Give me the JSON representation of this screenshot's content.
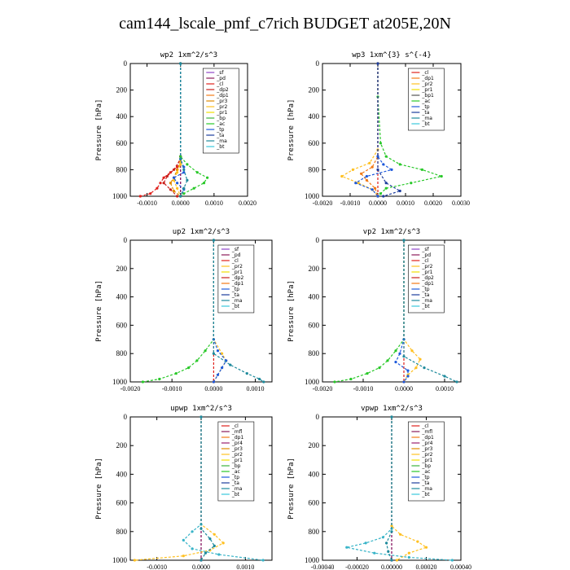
{
  "title": "cam144_lscale_pmf_c7rich  BUDGET at205E,20N",
  "colors": {
    "sf": "#8e44c8",
    "pd": "#8b1a5a",
    "cl": "#e0201c",
    "dp2": "#c8201c",
    "dp1": "#f27a16",
    "pr3": "#e08a00",
    "pr2": "#ffc020",
    "pr1": "#f0e000",
    "bp": "#3cb43c",
    "ac": "#28c828",
    "tp": "#1e5adc",
    "ta": "#1c3c9c",
    "ma": "#1e8a9c",
    "bt": "#38c8dc",
    "mfl": "#8b1a5a",
    "pr4": "#9a1e6e",
    "tp_t": "#38b4c8"
  },
  "chart_data": [
    {
      "type": "line",
      "title": "wp2   1xm^2/s^3",
      "ylabel": "Pressure  [hPa]",
      "ylim": [
        1000,
        0
      ],
      "yticks": [
        "0",
        "200",
        "400",
        "600",
        "800",
        "1000"
      ],
      "xlim": [
        -0.0015,
        0.002
      ],
      "xticks": [
        -0.001,
        0.0,
        0.001,
        0.002
      ],
      "xtick_labels": [
        "-0.0010",
        "0.0000",
        "0.0010",
        "0.0020"
      ],
      "legend": [
        "_sf",
        "_pd",
        "_cl",
        "_dp2",
        "_dp1",
        "_pr3",
        "_pr2",
        "_pr1",
        "_bp",
        "_ac",
        "_tp",
        "_ta",
        "_ma",
        "_bt"
      ],
      "series": [
        {
          "name": "_sf",
          "color": "#8e44c8",
          "y": [
            0,
            700,
            1000
          ],
          "x": [
            0,
            0,
            0
          ]
        },
        {
          "name": "_pd",
          "color": "#8b1a5a",
          "y": [
            0,
            700,
            1000
          ],
          "x": [
            0,
            0,
            0
          ]
        },
        {
          "name": "_cl",
          "color": "#e0201c",
          "y": [
            0,
            700,
            780,
            820,
            860,
            900,
            940,
            980,
            1000
          ],
          "x": [
            0,
            0,
            -0.0001,
            -0.0003,
            -0.0005,
            -0.0006,
            -0.0007,
            -0.0009,
            -0.0012
          ]
        },
        {
          "name": "_dp2",
          "color": "#c8201c",
          "y": [
            0,
            720,
            800,
            850,
            900,
            950,
            1000
          ],
          "x": [
            0,
            0,
            -0.0002,
            -0.0004,
            -0.0005,
            -0.0003,
            -0.0001
          ]
        },
        {
          "name": "_pr3",
          "color": "#e08a00",
          "y": [
            0,
            740,
            800,
            860,
            900,
            960,
            1000
          ],
          "x": [
            0,
            0,
            -0.0001,
            -0.0002,
            -0.0003,
            -0.0002,
            0
          ]
        },
        {
          "name": "_pr2",
          "color": "#ffc020",
          "y": [
            0,
            760,
            820,
            880,
            940,
            1000
          ],
          "x": [
            0,
            0,
            -0.0001,
            -0.0002,
            -0.0001,
            0
          ]
        },
        {
          "name": "_ac",
          "color": "#28c828",
          "y": [
            0,
            700,
            760,
            820,
            860,
            900,
            940,
            980,
            1000
          ],
          "x": [
            0,
            0,
            0.0002,
            0.0005,
            0.0008,
            0.0007,
            0.0004,
            0.0001,
            0
          ]
        },
        {
          "name": "_tp",
          "color": "#1e5adc",
          "y": [
            0,
            720,
            780,
            820,
            860,
            900,
            950,
            1000
          ],
          "x": [
            0,
            0,
            0.0001,
            0.0001,
            -0.0002,
            -0.0001,
            0.0001,
            0
          ]
        },
        {
          "name": "_ma",
          "color": "#1e8a9c",
          "y": [
            0,
            720,
            800,
            880,
            940,
            1000
          ],
          "x": [
            0,
            0,
            0.0001,
            0.0002,
            0.0001,
            0
          ]
        }
      ]
    },
    {
      "type": "line",
      "title": "wp3   1xm^{3} s^{-4}",
      "ylabel": "Pressure  [hPa]",
      "ylim": [
        1000,
        0
      ],
      "yticks": [
        "0",
        "200",
        "400",
        "600",
        "800",
        "1000"
      ],
      "xlim": [
        -0.002,
        0.003
      ],
      "xticks": [
        -0.002,
        -0.001,
        0.0,
        0.001,
        0.002,
        0.003
      ],
      "xtick_labels": [
        "-0.0020",
        "-0.0010",
        "0.0000",
        "0.0010",
        "0.0020",
        "0.0030"
      ],
      "legend": [
        "_cl",
        "_dp1",
        "_pr2",
        "_pr1",
        "_bp1",
        "_ac",
        "_tp",
        "_ta",
        "_ma",
        "_bt"
      ],
      "series": [
        {
          "name": "_cl",
          "color": "#e0201c",
          "y": [
            0,
            1000
          ],
          "x": [
            0,
            0
          ]
        },
        {
          "name": "_ac",
          "color": "#28c828",
          "y": [
            0,
            250,
            600,
            700,
            760,
            800,
            850,
            900,
            940,
            980,
            1000
          ],
          "x": [
            0,
            0,
            0.0001,
            0.0003,
            0.0008,
            0.0016,
            0.0023,
            0.0012,
            0.0003,
            0.0001,
            0
          ]
        },
        {
          "name": "_pr2",
          "color": "#ffc020",
          "y": [
            0,
            650,
            750,
            800,
            850,
            900,
            950,
            1000
          ],
          "x": [
            0,
            0,
            -0.0003,
            -0.0009,
            -0.0013,
            -0.0007,
            -0.0002,
            0
          ]
        },
        {
          "name": "_dp1",
          "color": "#f27a16",
          "y": [
            0,
            700,
            780,
            830,
            880,
            940,
            1000
          ],
          "x": [
            0,
            0,
            -0.0002,
            -0.0006,
            -0.0004,
            -0.0001,
            0
          ]
        },
        {
          "name": "_tp",
          "color": "#1e5adc",
          "y": [
            0,
            700,
            760,
            800,
            850,
            900,
            950,
            1000
          ],
          "x": [
            0,
            0,
            0.0002,
            0.0005,
            -0.0004,
            -0.0008,
            -0.0002,
            0
          ]
        },
        {
          "name": "_ta",
          "color": "#1c3c9c",
          "y": [
            0,
            800,
            900,
            960,
            1000
          ],
          "x": [
            0,
            0,
            0.0003,
            0.0008,
            0.0002
          ]
        }
      ]
    },
    {
      "type": "line",
      "title": "up2   1xm^2/s^3",
      "ylabel": "Pressure  [hPa]",
      "ylim": [
        1000,
        0
      ],
      "yticks": [
        "0",
        "200",
        "400",
        "600",
        "800",
        "1000"
      ],
      "xlim": [
        -0.002,
        0.0014
      ],
      "xticks": [
        -0.002,
        -0.001,
        0.0,
        0.001
      ],
      "xtick_labels": [
        "-0.0020",
        "-0.0010",
        "0.0000",
        "0.0010"
      ],
      "legend": [
        "_sf",
        "_pd",
        "_cl",
        "_pr2",
        "_pr1",
        "_dp2",
        "_dp1",
        "_tp",
        "_ta",
        "_ma",
        "_bt"
      ],
      "series": [
        {
          "name": "_cl",
          "color": "#e0201c",
          "y": [
            0,
            1000
          ],
          "x": [
            0,
            0
          ]
        },
        {
          "name": "_dp1",
          "color": "#28c828",
          "y": [
            0,
            700,
            780,
            850,
            900,
            940,
            980,
            1000
          ],
          "x": [
            0,
            0,
            -0.0002,
            -0.0004,
            -0.0006,
            -0.0009,
            -0.0013,
            -0.0017
          ]
        },
        {
          "name": "_pr2",
          "color": "#ffc020",
          "y": [
            0,
            700,
            800,
            850,
            900,
            950,
            1000
          ],
          "x": [
            0,
            0,
            0.0002,
            0.0003,
            0.0002,
            0.0001,
            0
          ]
        },
        {
          "name": "_tp",
          "color": "#1e5adc",
          "y": [
            0,
            700,
            780,
            850,
            900,
            950,
            1000
          ],
          "x": [
            0,
            0,
            0.0001,
            0.0003,
            0.0002,
            0.0001,
            0
          ]
        },
        {
          "name": "_ma",
          "color": "#1e8a9c",
          "y": [
            0,
            800,
            880,
            940,
            980,
            1000
          ],
          "x": [
            0,
            0,
            0.0004,
            0.0008,
            0.0011,
            0.0012
          ]
        }
      ]
    },
    {
      "type": "line",
      "title": "vp2   1xm^2/s^3",
      "ylabel": "Pressure  [hPa]",
      "ylim": [
        1000,
        0
      ],
      "yticks": [
        "0",
        "200",
        "400",
        "600",
        "800",
        "1000"
      ],
      "xlim": [
        -0.002,
        0.0014
      ],
      "xticks": [
        -0.002,
        -0.001,
        0.0,
        0.001
      ],
      "xtick_labels": [
        "-0.0020",
        "-0.0010",
        "0.0000",
        "0.0010"
      ],
      "legend": [
        "_sf",
        "_pd",
        "_cl",
        "_pr2",
        "_pr1",
        "_dp2",
        "_dp1",
        "_tp",
        "_ta",
        "_ma",
        "_bt"
      ],
      "series": [
        {
          "name": "_cl",
          "color": "#e0201c",
          "y": [
            0,
            1000
          ],
          "x": [
            0,
            0
          ]
        },
        {
          "name": "_dp1",
          "color": "#28c828",
          "y": [
            0,
            700,
            780,
            850,
            900,
            940,
            980,
            1000
          ],
          "x": [
            0,
            0,
            -0.0002,
            -0.0004,
            -0.0006,
            -0.0009,
            -0.0013,
            -0.0017
          ]
        },
        {
          "name": "_pr2",
          "color": "#ffc020",
          "y": [
            0,
            700,
            780,
            840,
            900,
            950,
            1000
          ],
          "x": [
            0,
            0,
            0.0002,
            0.0004,
            0.0003,
            0.0001,
            0
          ]
        },
        {
          "name": "_tp",
          "color": "#1e5adc",
          "y": [
            0,
            700,
            800,
            860,
            920,
            960,
            1000
          ],
          "x": [
            0,
            0,
            -0.0001,
            -0.0002,
            0.0001,
            0.0001,
            0
          ]
        },
        {
          "name": "_ma",
          "color": "#1e8a9c",
          "y": [
            0,
            820,
            900,
            960,
            1000
          ],
          "x": [
            0,
            0,
            0.0005,
            0.001,
            0.0013
          ]
        }
      ]
    },
    {
      "type": "line",
      "title": "upwp   1xm^2/s^3",
      "ylabel": "Pressure  [hPa]",
      "ylim": [
        1000,
        0
      ],
      "yticks": [
        "0",
        "200",
        "400",
        "600",
        "800",
        "1000"
      ],
      "xlim": [
        -0.0016,
        0.0016
      ],
      "xticks": [
        -0.001,
        0.0,
        0.001
      ],
      "xtick_labels": [
        "-0.0010",
        "0.0000",
        "0.0010"
      ],
      "legend": [
        "_cl",
        "_mfl",
        "_dp1",
        "_pr4",
        "_pr3",
        "_pr2",
        "_pr1",
        "_bp",
        "_ac",
        "_tp",
        "_ta",
        "_ma",
        "_bt"
      ],
      "series": [
        {
          "name": "_cl",
          "color": "#8e44c8",
          "y": [
            0,
            1000
          ],
          "x": [
            0,
            0
          ]
        },
        {
          "name": "_mfl",
          "color": "#8b1a5a",
          "y": [
            0,
            1000
          ],
          "x": [
            0,
            0
          ]
        },
        {
          "name": "_pr2",
          "color": "#ffc020",
          "y": [
            0,
            750,
            820,
            880,
            930,
            970,
            1000
          ],
          "x": [
            0,
            0,
            0.0003,
            0.0005,
            0.0002,
            -0.0004,
            -0.0015
          ]
        },
        {
          "name": "_tp",
          "color": "#38b4c8",
          "y": [
            0,
            750,
            800,
            860,
            920,
            960,
            1000
          ],
          "x": [
            0,
            0,
            -0.0002,
            -0.0004,
            -0.0002,
            0.0004,
            0.0014
          ]
        },
        {
          "name": "_ma",
          "color": "#1e8a9c",
          "y": [
            0,
            780,
            850,
            900,
            950,
            1000
          ],
          "x": [
            0,
            0,
            0.0002,
            0.0003,
            0.0001,
            0
          ]
        }
      ]
    },
    {
      "type": "line",
      "title": "vpwp   1xm^2/s^3",
      "ylabel": "Pressure  [hPa]",
      "ylim": [
        1000,
        0
      ],
      "yticks": [
        "0",
        "200",
        "400",
        "600",
        "800",
        "1000"
      ],
      "xlim": [
        -0.0004,
        0.0004
      ],
      "xticks": [
        -0.0004,
        -0.0002,
        0.0,
        0.0002,
        0.0004
      ],
      "xtick_labels": [
        "-0.00040",
        "-0.00020",
        "0.00000",
        "0.00020",
        "0.00040"
      ],
      "legend": [
        "_cl",
        "_mfl",
        "_dp1",
        "_pr4",
        "_pr3",
        "_pr2",
        "_pr1",
        "_bp",
        "_ac",
        "_tp",
        "_ta",
        "_ma",
        "_bt"
      ],
      "series": [
        {
          "name": "_cl",
          "color": "#8e44c8",
          "y": [
            0,
            1000
          ],
          "x": [
            0,
            0
          ]
        },
        {
          "name": "_mfl",
          "color": "#8b1a5a",
          "y": [
            0,
            1000
          ],
          "x": [
            0,
            0
          ]
        },
        {
          "name": "_pr2",
          "color": "#ffc020",
          "y": [
            0,
            760,
            820,
            870,
            910,
            950,
            1000
          ],
          "x": [
            0,
            0,
            5e-05,
            0.00015,
            0.0002,
            0.0001,
            3e-05
          ]
        },
        {
          "name": "_tp",
          "color": "#38b4c8",
          "y": [
            0,
            780,
            840,
            880,
            910,
            950,
            980,
            1000
          ],
          "x": [
            0,
            0,
            -5e-05,
            -0.00015,
            -0.00026,
            -0.0001,
            0.0001,
            0.00035
          ]
        },
        {
          "name": "_ma",
          "color": "#1e8a9c",
          "y": [
            0,
            800,
            880,
            940,
            1000
          ],
          "x": [
            0,
            0,
            -3e-05,
            -2e-05,
            0
          ]
        }
      ]
    }
  ]
}
